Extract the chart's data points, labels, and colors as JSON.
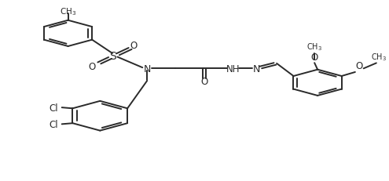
{
  "bg_color": "#ffffff",
  "line_color": "#2a2a2a",
  "line_width": 1.4,
  "font_size": 8.5,
  "layout": {
    "xlim": [
      0,
      10
    ],
    "ylim": [
      0,
      10
    ],
    "figw": 4.95,
    "figh": 2.32,
    "dpi": 100
  }
}
